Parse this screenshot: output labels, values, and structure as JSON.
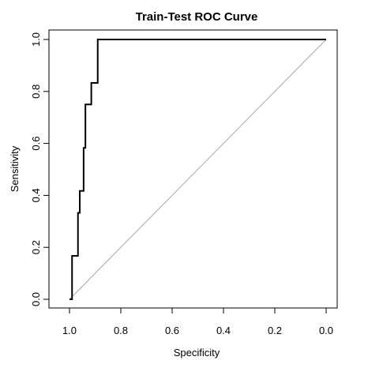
{
  "chart_data": {
    "type": "line",
    "title": "Train-Test ROC Curve",
    "xlabel": "Specificity",
    "ylabel": "Sensitivity",
    "xlim": [
      1.0,
      0.0
    ],
    "ylim": [
      0.0,
      1.0
    ],
    "x_reversed": true,
    "grid": false,
    "legend": "none",
    "x_ticks": [
      {
        "value": 1.0,
        "label": "1.0"
      },
      {
        "value": 0.8,
        "label": "0.8"
      },
      {
        "value": 0.6,
        "label": "0.6"
      },
      {
        "value": 0.4,
        "label": "0.4"
      },
      {
        "value": 0.2,
        "label": "0.2"
      },
      {
        "value": 0.0,
        "label": "0.0"
      }
    ],
    "y_ticks": [
      {
        "value": 0.0,
        "label": "0.0"
      },
      {
        "value": 0.2,
        "label": "0.2"
      },
      {
        "value": 0.4,
        "label": "0.4"
      },
      {
        "value": 0.6,
        "label": "0.6"
      },
      {
        "value": 0.8,
        "label": "0.8"
      },
      {
        "value": 1.0,
        "label": "1.0"
      }
    ],
    "series": [
      {
        "color": "#000000",
        "points": [
          {
            "x": 1.0,
            "y": 0.0
          },
          {
            "x": 0.99,
            "y": 0.0
          },
          {
            "x": 0.99,
            "y": 0.167
          },
          {
            "x": 0.967,
            "y": 0.167
          },
          {
            "x": 0.967,
            "y": 0.333
          },
          {
            "x": 0.96,
            "y": 0.333
          },
          {
            "x": 0.96,
            "y": 0.417
          },
          {
            "x": 0.945,
            "y": 0.417
          },
          {
            "x": 0.945,
            "y": 0.583
          },
          {
            "x": 0.938,
            "y": 0.583
          },
          {
            "x": 0.938,
            "y": 0.75
          },
          {
            "x": 0.915,
            "y": 0.75
          },
          {
            "x": 0.915,
            "y": 0.833
          },
          {
            "x": 0.89,
            "y": 0.833
          },
          {
            "x": 0.89,
            "y": 1.0
          },
          {
            "x": 0.0,
            "y": 1.0
          }
        ]
      }
    ],
    "reference_line": {
      "color": "#a9a9a9",
      "points": [
        {
          "x": 1.0,
          "y": 0.0
        },
        {
          "x": 0.0,
          "y": 1.0
        }
      ]
    }
  }
}
